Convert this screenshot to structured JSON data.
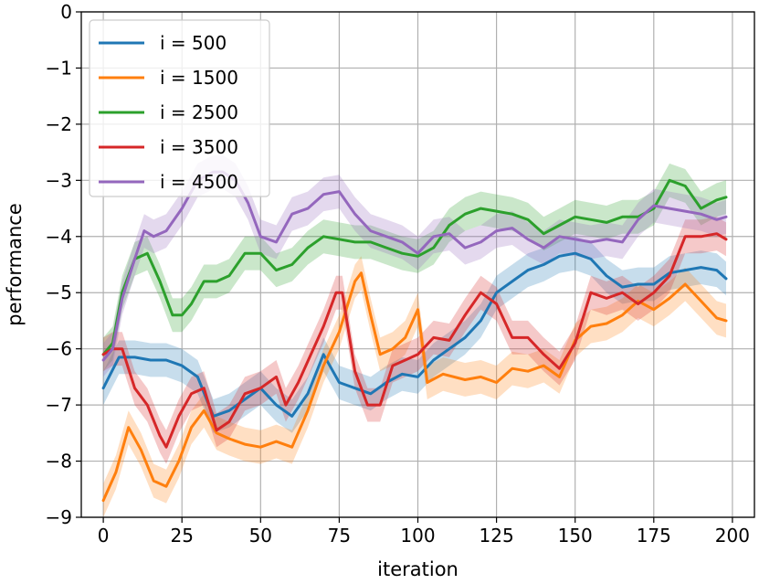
{
  "chart_data": {
    "type": "line",
    "xlabel": "iteration",
    "ylabel": "performance",
    "xlim": [
      -7,
      207
    ],
    "ylim": [
      -9,
      0
    ],
    "xticks": [
      0,
      25,
      50,
      75,
      100,
      125,
      150,
      175,
      200
    ],
    "yticks": [
      0,
      -1,
      -2,
      -3,
      -4,
      -5,
      -6,
      -7,
      -8,
      -9
    ],
    "grid": true,
    "legend_position": "top-left",
    "series": [
      {
        "name": "i = 500",
        "color": "#1f77b4",
        "x": [
          0,
          5,
          10,
          15,
          20,
          25,
          30,
          35,
          40,
          45,
          50,
          55,
          60,
          65,
          70,
          75,
          80,
          85,
          90,
          95,
          100,
          105,
          110,
          115,
          120,
          125,
          130,
          135,
          140,
          145,
          150,
          155,
          160,
          165,
          170,
          175,
          180,
          185,
          190,
          195,
          198
        ],
        "y": [
          -6.7,
          -6.15,
          -6.15,
          -6.2,
          -6.2,
          -6.3,
          -6.5,
          -7.2,
          -7.1,
          -6.9,
          -6.7,
          -7.0,
          -7.2,
          -6.8,
          -6.1,
          -6.6,
          -6.7,
          -6.8,
          -6.6,
          -6.45,
          -6.5,
          -6.2,
          -6.0,
          -5.8,
          -5.5,
          -5.0,
          -4.8,
          -4.6,
          -4.5,
          -4.35,
          -4.3,
          -4.4,
          -4.7,
          -4.9,
          -4.85,
          -4.85,
          -4.65,
          -4.6,
          -4.55,
          -4.6,
          -4.75
        ],
        "band": [
          0.3,
          0.3,
          0.3,
          0.3,
          0.3,
          0.3,
          0.3,
          0.3,
          0.3,
          0.3,
          0.3,
          0.3,
          0.3,
          0.3,
          0.3,
          0.3,
          0.3,
          0.3,
          0.3,
          0.3,
          0.3,
          0.3,
          0.3,
          0.3,
          0.3,
          0.3,
          0.3,
          0.3,
          0.3,
          0.3,
          0.3,
          0.3,
          0.3,
          0.3,
          0.3,
          0.3,
          0.3,
          0.3,
          0.3,
          0.3,
          0.3
        ]
      },
      {
        "name": "i = 1500",
        "color": "#ff7f0e",
        "x": [
          0,
          4,
          8,
          12,
          16,
          20,
          24,
          28,
          32,
          36,
          40,
          45,
          50,
          55,
          60,
          65,
          70,
          75,
          80,
          82,
          85,
          88,
          92,
          96,
          100,
          103,
          108,
          115,
          120,
          125,
          130,
          135,
          140,
          145,
          150,
          155,
          160,
          165,
          170,
          175,
          180,
          185,
          190,
          195,
          198
        ],
        "y": [
          -8.7,
          -8.2,
          -7.4,
          -7.8,
          -8.35,
          -8.45,
          -8.0,
          -7.4,
          -7.1,
          -7.5,
          -7.6,
          -7.7,
          -7.75,
          -7.65,
          -7.75,
          -7.1,
          -6.3,
          -5.7,
          -4.8,
          -4.65,
          -5.4,
          -6.1,
          -6.0,
          -5.8,
          -5.3,
          -6.6,
          -6.45,
          -6.55,
          -6.5,
          -6.6,
          -6.35,
          -6.4,
          -6.3,
          -6.5,
          -5.85,
          -5.6,
          -5.55,
          -5.4,
          -5.15,
          -5.3,
          -5.1,
          -4.85,
          -5.15,
          -5.45,
          -5.5
        ],
        "band": [
          0.3,
          0.3,
          0.3,
          0.3,
          0.3,
          0.3,
          0.3,
          0.3,
          0.3,
          0.3,
          0.3,
          0.3,
          0.3,
          0.3,
          0.3,
          0.3,
          0.3,
          0.3,
          0.3,
          0.3,
          0.3,
          0.3,
          0.3,
          0.3,
          0.3,
          0.3,
          0.3,
          0.3,
          0.3,
          0.3,
          0.3,
          0.3,
          0.3,
          0.3,
          0.3,
          0.3,
          0.3,
          0.3,
          0.3,
          0.3,
          0.3,
          0.3,
          0.3,
          0.3,
          0.3
        ]
      },
      {
        "name": "i = 2500",
        "color": "#2ca02c",
        "x": [
          0,
          3,
          6,
          10,
          14,
          18,
          22,
          25,
          28,
          32,
          36,
          40,
          45,
          50,
          55,
          60,
          65,
          70,
          75,
          80,
          85,
          90,
          95,
          100,
          105,
          110,
          115,
          120,
          125,
          130,
          135,
          140,
          145,
          150,
          155,
          160,
          165,
          170,
          175,
          180,
          185,
          190,
          195,
          198
        ],
        "y": [
          -6.1,
          -5.9,
          -5.0,
          -4.4,
          -4.3,
          -4.8,
          -5.4,
          -5.4,
          -5.2,
          -4.8,
          -4.8,
          -4.7,
          -4.3,
          -4.3,
          -4.6,
          -4.5,
          -4.2,
          -4.0,
          -4.05,
          -4.1,
          -4.1,
          -4.2,
          -4.3,
          -4.35,
          -4.2,
          -3.8,
          -3.6,
          -3.5,
          -3.55,
          -3.6,
          -3.7,
          -3.95,
          -3.8,
          -3.65,
          -3.7,
          -3.75,
          -3.65,
          -3.65,
          -3.5,
          -3.0,
          -3.1,
          -3.5,
          -3.35,
          -3.3
        ],
        "band": [
          0.3,
          0.3,
          0.3,
          0.3,
          0.3,
          0.3,
          0.3,
          0.3,
          0.3,
          0.3,
          0.3,
          0.3,
          0.3,
          0.3,
          0.3,
          0.3,
          0.3,
          0.3,
          0.3,
          0.3,
          0.3,
          0.3,
          0.3,
          0.3,
          0.3,
          0.3,
          0.3,
          0.3,
          0.3,
          0.3,
          0.3,
          0.3,
          0.3,
          0.3,
          0.3,
          0.3,
          0.3,
          0.3,
          0.3,
          0.3,
          0.3,
          0.3,
          0.3,
          0.3
        ]
      },
      {
        "name": "i = 3500",
        "color": "#d62728",
        "x": [
          0,
          3,
          6,
          10,
          14,
          18,
          20,
          24,
          28,
          32,
          36,
          40,
          45,
          50,
          55,
          58,
          62,
          66,
          70,
          74,
          76,
          80,
          84,
          88,
          92,
          96,
          100,
          105,
          110,
          115,
          120,
          125,
          130,
          135,
          140,
          145,
          150,
          155,
          160,
          165,
          170,
          175,
          180,
          185,
          190,
          195,
          198
        ],
        "y": [
          -6.1,
          -6.0,
          -6.0,
          -6.7,
          -7.0,
          -7.55,
          -7.75,
          -7.2,
          -6.8,
          -6.7,
          -7.45,
          -7.3,
          -6.8,
          -6.7,
          -6.5,
          -7.0,
          -6.6,
          -6.1,
          -5.6,
          -5.0,
          -5.0,
          -6.4,
          -7.0,
          -7.0,
          -6.3,
          -6.2,
          -6.1,
          -5.8,
          -5.85,
          -5.4,
          -5.0,
          -5.2,
          -5.8,
          -5.8,
          -6.1,
          -6.35,
          -5.9,
          -5.0,
          -5.1,
          -5.0,
          -5.2,
          -5.0,
          -4.7,
          -4.0,
          -4.0,
          -3.95,
          -4.05
        ],
        "band": [
          0.3,
          0.3,
          0.3,
          0.3,
          0.3,
          0.3,
          0.3,
          0.3,
          0.3,
          0.3,
          0.3,
          0.3,
          0.3,
          0.3,
          0.3,
          0.3,
          0.3,
          0.3,
          0.3,
          0.3,
          0.3,
          0.3,
          0.3,
          0.3,
          0.3,
          0.3,
          0.3,
          0.3,
          0.3,
          0.3,
          0.3,
          0.3,
          0.3,
          0.3,
          0.3,
          0.3,
          0.3,
          0.3,
          0.3,
          0.3,
          0.3,
          0.3,
          0.3,
          0.3,
          0.3,
          0.3,
          0.3
        ]
      },
      {
        "name": "i = 4500",
        "color": "#9467bd",
        "x": [
          0,
          3,
          6,
          10,
          13,
          16,
          20,
          25,
          30,
          35,
          38,
          42,
          46,
          50,
          55,
          60,
          65,
          70,
          75,
          80,
          85,
          90,
          95,
          100,
          105,
          110,
          115,
          120,
          125,
          130,
          135,
          140,
          145,
          150,
          155,
          160,
          165,
          170,
          175,
          180,
          185,
          190,
          195,
          198
        ],
        "y": [
          -6.2,
          -6.0,
          -5.1,
          -4.4,
          -3.9,
          -4.0,
          -3.9,
          -3.5,
          -3.0,
          -2.85,
          -2.85,
          -3.0,
          -3.4,
          -4.0,
          -4.1,
          -3.6,
          -3.5,
          -3.25,
          -3.2,
          -3.6,
          -3.9,
          -4.0,
          -4.1,
          -4.3,
          -4.0,
          -3.95,
          -4.2,
          -4.1,
          -3.9,
          -3.85,
          -4.05,
          -4.2,
          -4.0,
          -4.05,
          -4.1,
          -4.05,
          -4.1,
          -3.7,
          -3.45,
          -3.5,
          -3.55,
          -3.6,
          -3.7,
          -3.65
        ],
        "band": [
          0.3,
          0.3,
          0.3,
          0.3,
          0.3,
          0.3,
          0.3,
          0.3,
          0.3,
          0.3,
          0.3,
          0.3,
          0.3,
          0.3,
          0.3,
          0.3,
          0.3,
          0.3,
          0.3,
          0.3,
          0.3,
          0.3,
          0.3,
          0.3,
          0.3,
          0.3,
          0.3,
          0.3,
          0.3,
          0.3,
          0.3,
          0.3,
          0.3,
          0.3,
          0.3,
          0.3,
          0.3,
          0.3,
          0.3,
          0.3,
          0.3,
          0.3,
          0.3,
          0.3
        ]
      }
    ]
  }
}
